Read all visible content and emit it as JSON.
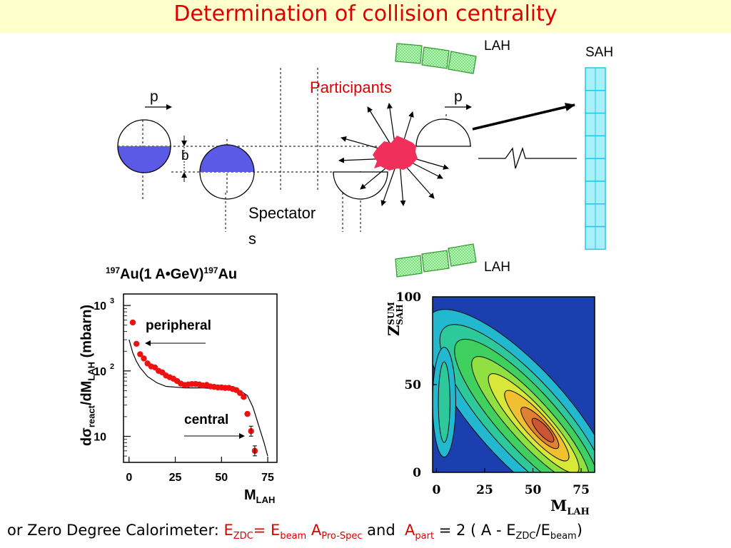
{
  "title": "Determination of collision centrality",
  "diagram": {
    "lah_top": "LAH",
    "lah_bottom": "LAH",
    "sah": "SAH",
    "participants": "Participants",
    "p_left": "p",
    "p_right": "p",
    "b": "b",
    "spectators_line1": "Spectator",
    "spectators_line2": "s"
  },
  "chart_left": {
    "title_pre": "197",
    "title_mid": "Au(1 A•GeV)",
    "title_sup2": "197",
    "title_end": "Au",
    "ylabel": "dσreact/dMLAH (mbarn)",
    "ylabel_parts": [
      "d",
      "σ",
      "react",
      "/dM",
      "LAH",
      " (mbarn)"
    ],
    "xlabel_main": "M",
    "xlabel_sub": "LAH",
    "peripheral": "peripheral",
    "central": "central"
  },
  "chart_right": {
    "ylabel_main": "Z",
    "ylabel_sup": "SUM",
    "ylabel_sub": "SAH",
    "xlabel_main": "M",
    "xlabel_sub": "LAH"
  },
  "chart_data": [
    {
      "type": "scatter",
      "title": "197Au(1 A•GeV)197Au",
      "xlabel": "MLAH",
      "ylabel": "dσreact/dMLAH (mbarn)",
      "log_y": true,
      "xlim": [
        -3,
        80
      ],
      "ylim": [
        4,
        1500
      ],
      "x_ticks": [
        0,
        25,
        50,
        75
      ],
      "y_ticks": [
        {
          "v": 10,
          "base": "10",
          "exp": ""
        },
        {
          "v": 100,
          "base": "10",
          "exp": "2"
        },
        {
          "v": 1000,
          "base": "10",
          "exp": "3"
        }
      ],
      "points": [
        {
          "x": 2,
          "y": 550
        },
        {
          "x": 4,
          "y": 260
        },
        {
          "x": 6,
          "y": 180
        },
        {
          "x": 8,
          "y": 155
        },
        {
          "x": 10,
          "y": 130
        },
        {
          "x": 12,
          "y": 117
        },
        {
          "x": 14,
          "y": 113
        },
        {
          "x": 16,
          "y": 100
        },
        {
          "x": 18,
          "y": 95
        },
        {
          "x": 20,
          "y": 85
        },
        {
          "x": 22,
          "y": 80
        },
        {
          "x": 24,
          "y": 76
        },
        {
          "x": 26,
          "y": 70
        },
        {
          "x": 28,
          "y": 64
        },
        {
          "x": 30,
          "y": 61
        },
        {
          "x": 32,
          "y": 62
        },
        {
          "x": 34,
          "y": 63
        },
        {
          "x": 36,
          "y": 63
        },
        {
          "x": 38,
          "y": 62
        },
        {
          "x": 40,
          "y": 60
        },
        {
          "x": 42,
          "y": 61
        },
        {
          "x": 44,
          "y": 58
        },
        {
          "x": 46,
          "y": 57
        },
        {
          "x": 48,
          "y": 56
        },
        {
          "x": 50,
          "y": 56
        },
        {
          "x": 52,
          "y": 55
        },
        {
          "x": 54,
          "y": 55
        },
        {
          "x": 56,
          "y": 53
        },
        {
          "x": 58,
          "y": 51
        },
        {
          "x": 60,
          "y": 46
        },
        {
          "x": 62,
          "y": 40
        },
        {
          "x": 64,
          "y": 22
        },
        {
          "x": 66,
          "y": 12
        },
        {
          "x": 68,
          "y": 6
        }
      ],
      "model_curve": [
        {
          "x": 0,
          "y": 300
        },
        {
          "x": 2,
          "y": 190
        },
        {
          "x": 4,
          "y": 140
        },
        {
          "x": 6,
          "y": 112
        },
        {
          "x": 10,
          "y": 82
        },
        {
          "x": 15,
          "y": 66
        },
        {
          "x": 20,
          "y": 58
        },
        {
          "x": 30,
          "y": 55
        },
        {
          "x": 40,
          "y": 55
        },
        {
          "x": 50,
          "y": 53
        },
        {
          "x": 60,
          "y": 50
        },
        {
          "x": 64,
          "y": 42
        },
        {
          "x": 67,
          "y": 28
        },
        {
          "x": 70,
          "y": 15
        },
        {
          "x": 73,
          "y": 8
        },
        {
          "x": 75,
          "y": 5
        }
      ]
    },
    {
      "type": "heatmap",
      "xlabel": "MLAH",
      "ylabel": "ZSUMSAH",
      "xlim": [
        -2,
        82
      ],
      "ylim": [
        0,
        100
      ],
      "x_ticks": [
        0,
        25,
        50,
        75
      ],
      "y_ticks": [
        0,
        50,
        100
      ]
    }
  ]
}
